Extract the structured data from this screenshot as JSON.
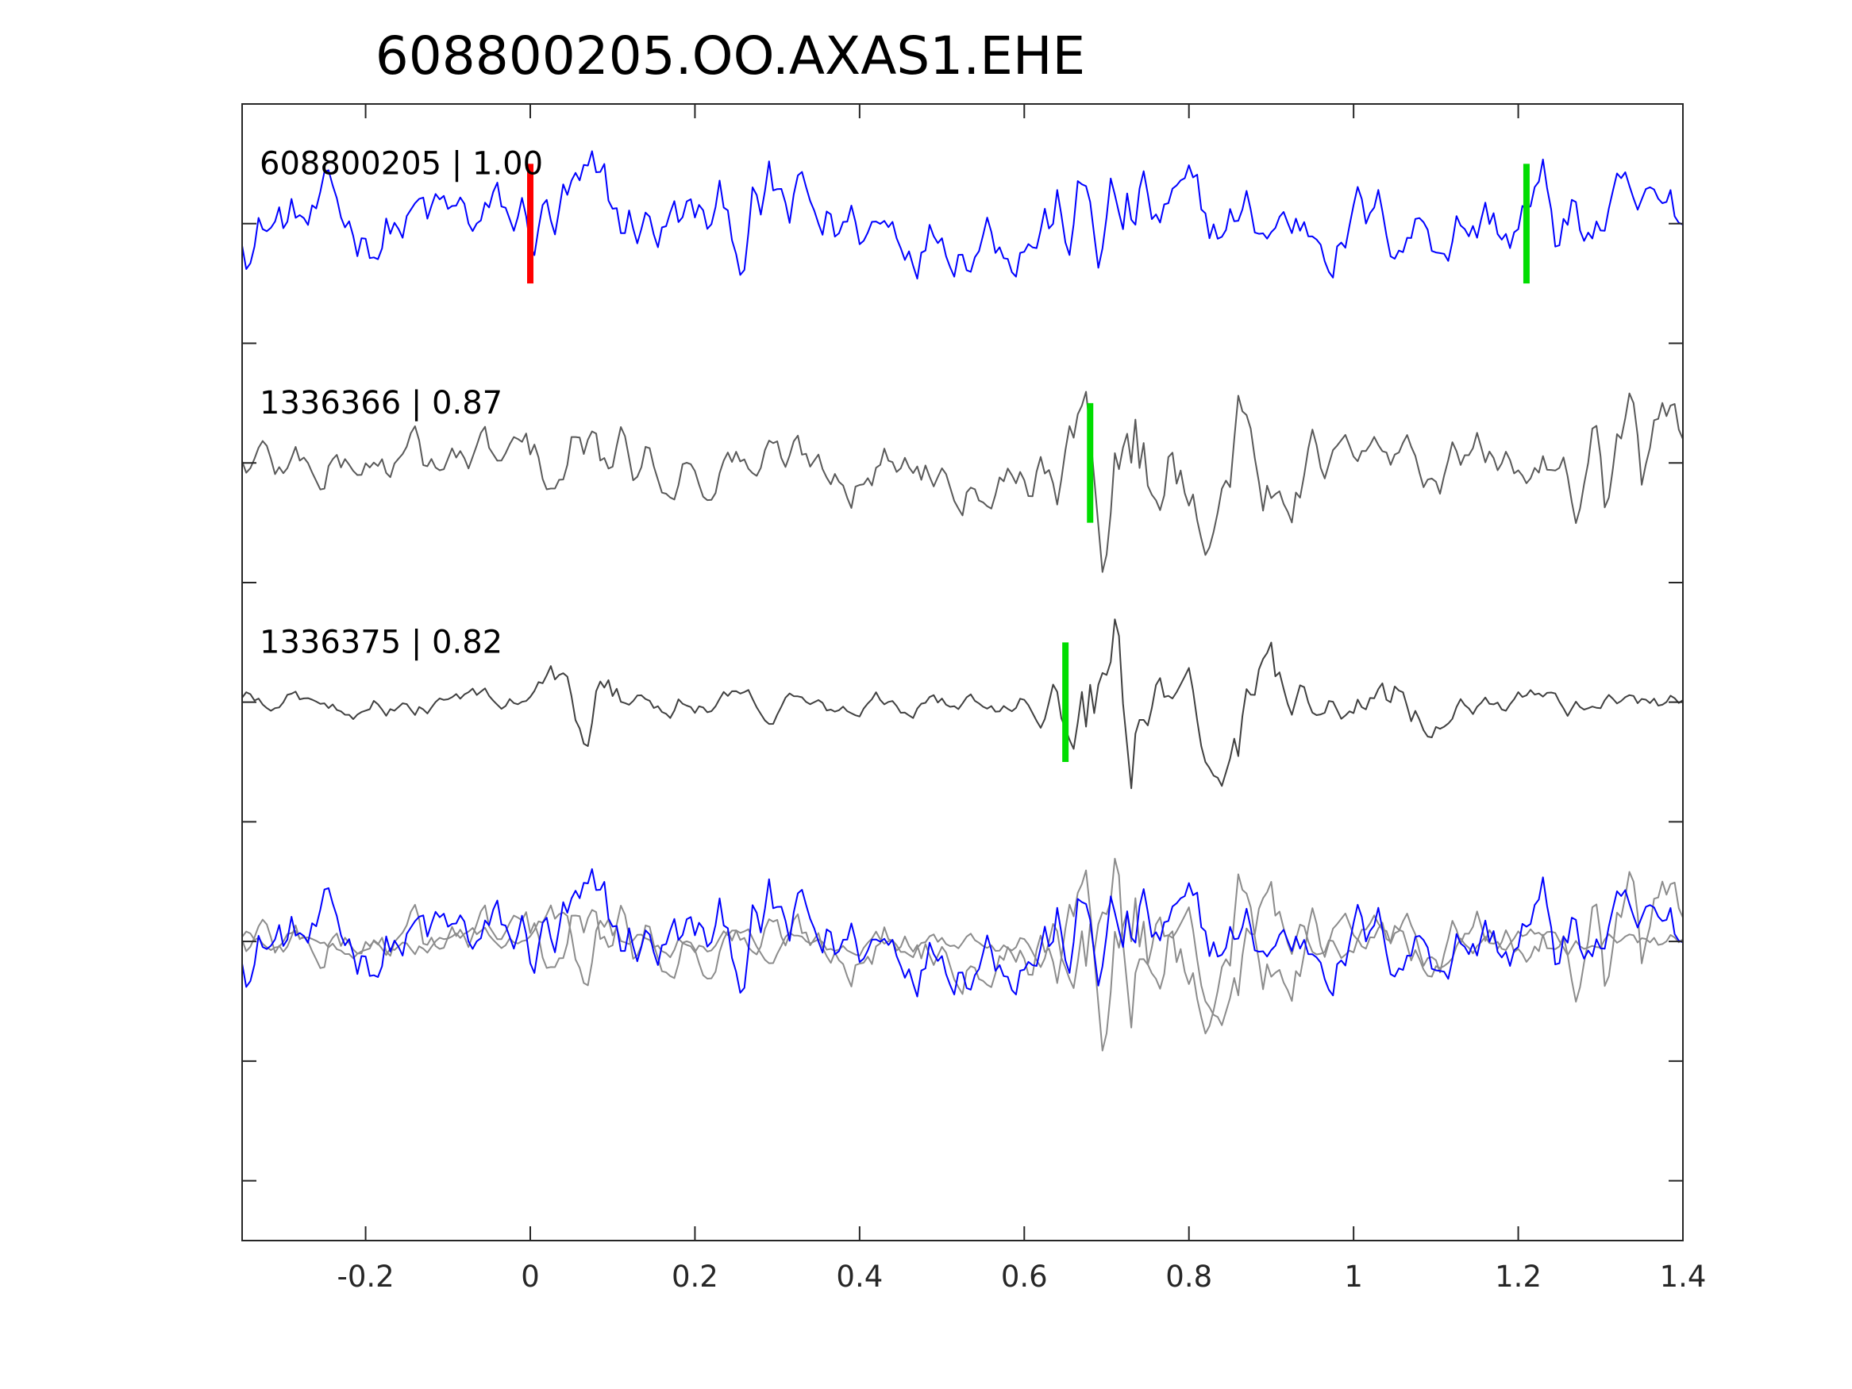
{
  "chart_data": {
    "type": "line",
    "title": "608800205.OO.AXAS1.EHE",
    "xlabel": "",
    "ylabel": "",
    "xlim": [
      -0.35,
      1.4
    ],
    "x_ticks": [
      -0.2,
      0,
      0.2,
      0.4,
      0.6,
      0.8,
      1,
      1.2,
      1.4
    ],
    "x_tick_labels": [
      "-0.2",
      "0",
      "0.2",
      "0.4",
      "0.6",
      "0.8",
      "1",
      "1.2",
      "1.4"
    ],
    "y_ticks": [
      -4,
      -3,
      -2,
      -1,
      0,
      1,
      2,
      3,
      4,
      5
    ],
    "y_tick_labels": [
      "",
      "",
      "",
      "",
      "",
      "",
      "",
      "",
      "",
      ""
    ],
    "ylim": [
      -4.5,
      5
    ],
    "grid": false,
    "traces": [
      {
        "label": "608800205 | 1.00",
        "offset": 4,
        "color": "#0000ff",
        "marker_red": 0.0,
        "marker_green": 1.21
      },
      {
        "label": "1336366 | 0.87",
        "offset": 2,
        "color": "#595959",
        "marker_green": 0.68
      },
      {
        "label": "1336375 | 0.82",
        "offset": 0,
        "color": "#404040",
        "marker_green": 0.65
      }
    ],
    "overlay": {
      "offset": -2,
      "colors": [
        "#0000ff",
        "#8c8c8c",
        "#8c8c8c"
      ]
    },
    "colors": {
      "red_marker": "#ff0000",
      "green_marker": "#00dd00",
      "axes": "#262626"
    }
  }
}
